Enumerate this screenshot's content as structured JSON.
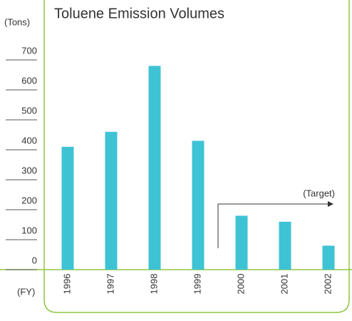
{
  "chart_data": {
    "type": "bar",
    "title": "Toluene Emission Volumes",
    "y_label": "(Tons)",
    "x_label": "(FY)",
    "categories": [
      "1996",
      "1997",
      "1998",
      "1999",
      "2000",
      "2001",
      "2002"
    ],
    "values": [
      410,
      460,
      680,
      430,
      180,
      160,
      80
    ],
    "color": "#3ec3d5",
    "ylim": [
      0,
      700
    ],
    "yticks": [
      0,
      100,
      200,
      300,
      400,
      500,
      600,
      700
    ],
    "annotation": "(Target)"
  }
}
